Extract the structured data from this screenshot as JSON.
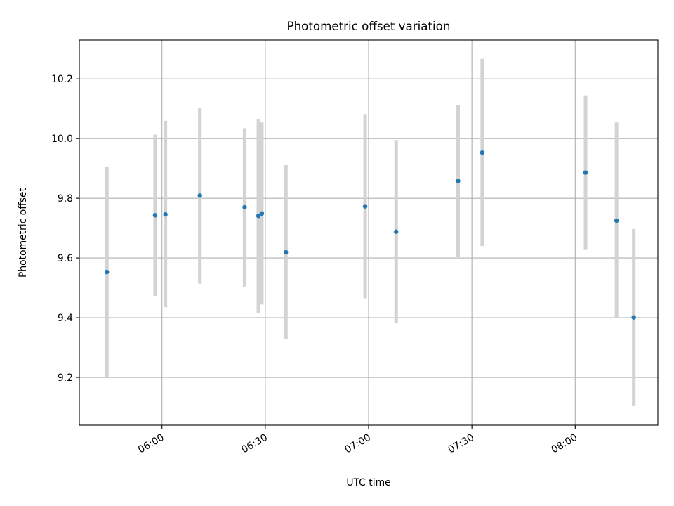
{
  "chart_data": {
    "type": "scatter",
    "title": "Photometric offset variation",
    "xlabel": "UTC time",
    "ylabel": "Photometric offset",
    "x_type": "time",
    "xlim": [
      "05:36",
      "08:24"
    ],
    "ylim": [
      9.04,
      10.33
    ],
    "x_ticks": [
      "06:00",
      "06:30",
      "07:00",
      "07:30",
      "08:00"
    ],
    "y_ticks": [
      9.2,
      9.4,
      9.6,
      9.8,
      10.0,
      10.2
    ],
    "y_tick_labels": [
      "9.2",
      "9.4",
      "9.6",
      "9.8",
      "10.0",
      "10.2"
    ],
    "grid": true,
    "series": [
      {
        "marker_color": "#1f77b4",
        "errorbar_color": "#d3d3d3",
        "points": [
          {
            "x": "05:44",
            "y": 9.553,
            "low": 9.2,
            "high": 9.905
          },
          {
            "x": "05:58",
            "y": 9.743,
            "low": 9.473,
            "high": 10.013
          },
          {
            "x": "06:01",
            "y": 9.746,
            "low": 9.435,
            "high": 10.06
          },
          {
            "x": "06:11",
            "y": 9.809,
            "low": 9.514,
            "high": 10.104
          },
          {
            "x": "06:24",
            "y": 9.77,
            "low": 9.504,
            "high": 10.035
          },
          {
            "x": "06:28",
            "y": 9.741,
            "low": 9.416,
            "high": 10.066
          },
          {
            "x": "06:29",
            "y": 9.749,
            "low": 9.444,
            "high": 10.054
          },
          {
            "x": "06:36",
            "y": 9.619,
            "low": 9.328,
            "high": 9.911
          },
          {
            "x": "06:59",
            "y": 9.773,
            "low": 9.465,
            "high": 10.082
          },
          {
            "x": "07:08",
            "y": 9.688,
            "low": 9.381,
            "high": 9.995
          },
          {
            "x": "07:26",
            "y": 9.858,
            "low": 9.605,
            "high": 10.111
          },
          {
            "x": "07:33",
            "y": 9.953,
            "low": 9.64,
            "high": 10.267
          },
          {
            "x": "08:03",
            "y": 9.886,
            "low": 9.627,
            "high": 10.145
          },
          {
            "x": "08:12",
            "y": 9.725,
            "low": 9.4,
            "high": 10.054
          },
          {
            "x": "08:17",
            "y": 9.401,
            "low": 9.105,
            "high": 9.697
          }
        ]
      }
    ]
  }
}
